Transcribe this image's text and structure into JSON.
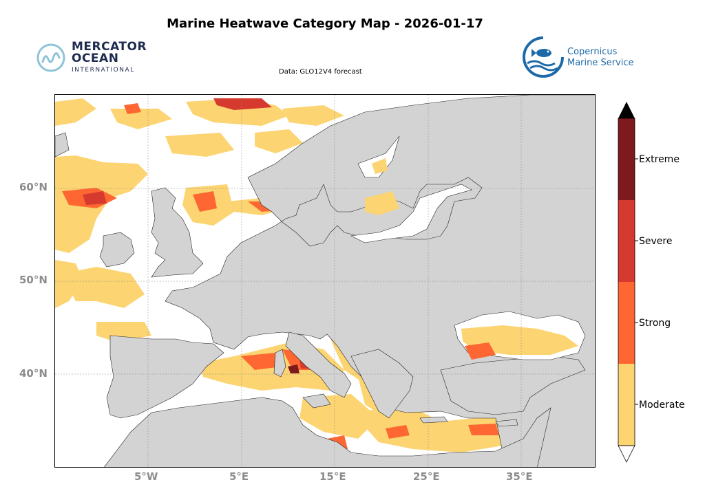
{
  "title": "Marine Heatwave Category Map - 2026-01-17",
  "subtitle": "Data: GLO12V4 forecast",
  "logo_left": {
    "line1": "MERCATOR",
    "line2": "OCEAN",
    "line3": "INTERNATIONAL"
  },
  "logo_right": {
    "line1": "Copernicus",
    "line2": "Marine Service"
  },
  "map": {
    "extent": {
      "lon": [
        -15,
        43
      ],
      "lat": [
        30,
        70
      ]
    },
    "lat_ticks": [
      "60°N",
      "50°N",
      "40°N"
    ],
    "lon_ticks": [
      "5°W",
      "5°E",
      "15°E",
      "25°E",
      "35°E"
    ],
    "colors": {
      "land": "#d3d3d3",
      "ocean": "#ffffff",
      "moderate": "#fcd471",
      "strong": "#fe6731",
      "severe": "#d63a2f",
      "extreme": "#7e1a1e"
    }
  },
  "colorbar": {
    "categories": [
      "Moderate",
      "Strong",
      "Severe",
      "Extreme"
    ],
    "colors": [
      "#fcd471",
      "#fe6731",
      "#d63a2f",
      "#7e1a1e"
    ],
    "extend": "both"
  }
}
